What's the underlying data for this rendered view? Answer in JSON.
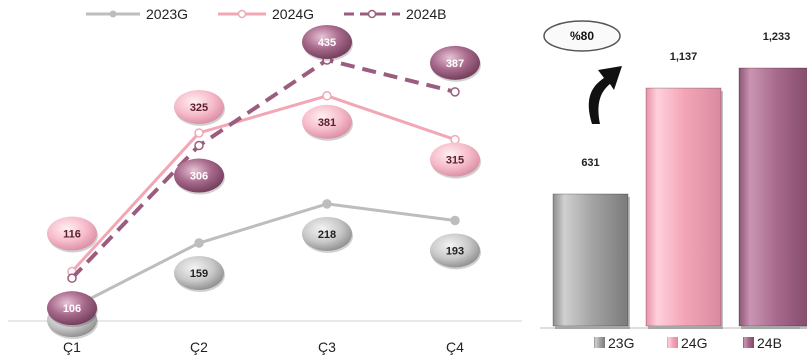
{
  "chart_data": [
    {
      "type": "line",
      "categories": [
        "Ç1",
        "Ç2",
        "Ç3",
        "Ç4"
      ],
      "series": [
        {
          "name": "2023G",
          "values": [
            61,
            159,
            218,
            193
          ],
          "color": "#bdbdbd",
          "dash": false
        },
        {
          "name": "2024G",
          "values": [
            116,
            325,
            381,
            315
          ],
          "color": "#f2a7b5",
          "dash": false
        },
        {
          "name": "2024B",
          "values": [
            106,
            306,
            435,
            387
          ],
          "color": "#9b5d7e",
          "dash": true
        }
      ],
      "legend": "top"
    },
    {
      "type": "bar",
      "categories": [
        "23G",
        "24G",
        "24B"
      ],
      "values": [
        631,
        1137,
        1233
      ],
      "value_labels": [
        "631",
        "1,137",
        "1,233"
      ],
      "colors": [
        "#9e9e9e",
        "#f4a6b8",
        "#a86a8c"
      ],
      "annotation": "%80",
      "legend": "bottom"
    }
  ]
}
